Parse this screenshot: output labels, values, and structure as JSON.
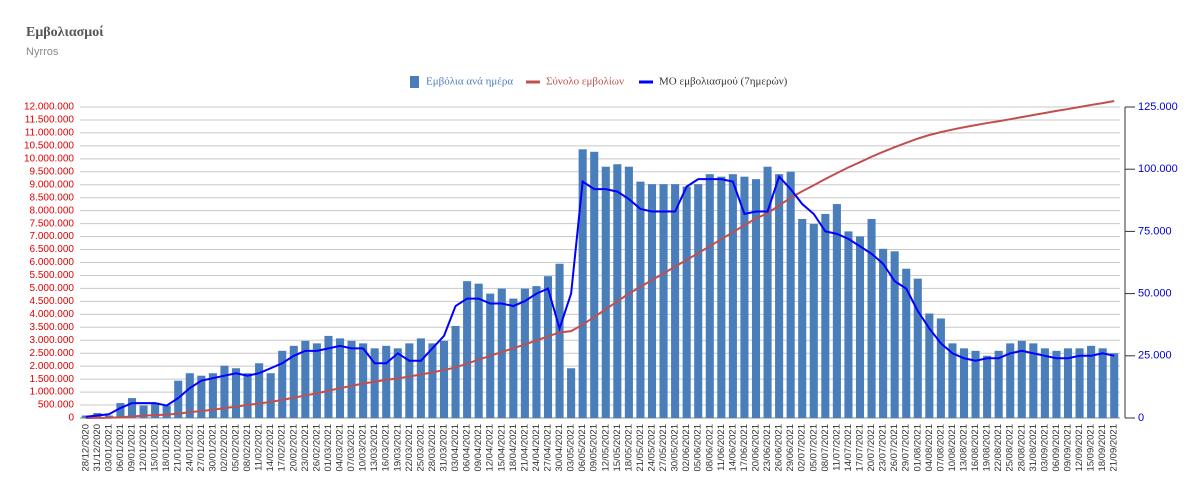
{
  "chart_data": {
    "type": "bar",
    "title": "Εμβολιασμοί",
    "subtitle": "Nyrros",
    "categories": [
      "28/12/2020",
      "31/12/2020",
      "03/01/2021",
      "06/01/2021",
      "09/01/2021",
      "12/01/2021",
      "15/01/2021",
      "18/01/2021",
      "21/01/2021",
      "24/01/2021",
      "27/01/2021",
      "30/01/2021",
      "02/02/2021",
      "05/02/2021",
      "08/02/2021",
      "11/02/2021",
      "14/02/2021",
      "17/02/2021",
      "20/02/2021",
      "23/02/2021",
      "26/02/2021",
      "01/03/2021",
      "04/03/2021",
      "07/03/2021",
      "10/03/2021",
      "13/03/2021",
      "16/03/2021",
      "19/03/2021",
      "22/03/2021",
      "25/03/2021",
      "28/03/2021",
      "31/03/2021",
      "03/04/2021",
      "06/04/2021",
      "09/04/2021",
      "12/04/2021",
      "15/04/2021",
      "18/04/2021",
      "21/04/2021",
      "24/04/2021",
      "27/04/2021",
      "30/04/2021",
      "03/05/2021",
      "06/05/2021",
      "09/05/2021",
      "12/05/2021",
      "15/05/2021",
      "18/05/2021",
      "21/05/2021",
      "24/05/2021",
      "27/05/2021",
      "30/05/2021",
      "02/06/2021",
      "05/06/2021",
      "08/06/2021",
      "11/06/2021",
      "14/06/2021",
      "17/06/2021",
      "20/06/2021",
      "23/06/2021",
      "26/06/2021",
      "29/06/2021",
      "02/07/2021",
      "05/07/2021",
      "08/07/2021",
      "11/07/2021",
      "14/07/2021",
      "17/07/2021",
      "20/07/2021",
      "23/07/2021",
      "26/07/2021",
      "29/07/2021",
      "01/08/2021",
      "04/08/2021",
      "07/08/2021",
      "10/08/2021",
      "13/08/2021",
      "16/08/2021",
      "19/08/2021",
      "22/08/2021",
      "25/08/2021",
      "28/08/2021",
      "31/08/2021",
      "03/09/2021",
      "06/09/2021",
      "09/09/2021",
      "12/09/2021",
      "15/09/2021",
      "18/09/2021",
      "21/09/2021"
    ],
    "series": [
      {
        "name": "Εμβόλια ανά ημέρα",
        "type": "bar",
        "axis": "y2",
        "color": "#4a7ebb",
        "values": [
          1000,
          2000,
          1000,
          6000,
          8000,
          5000,
          6000,
          5000,
          15000,
          18000,
          17000,
          18000,
          21000,
          20000,
          18000,
          22000,
          18000,
          27000,
          29000,
          31000,
          30000,
          33000,
          32000,
          31000,
          30000,
          28000,
          29000,
          28000,
          30000,
          32000,
          30000,
          31000,
          37000,
          55000,
          54000,
          50000,
          52000,
          48000,
          52000,
          53000,
          57000,
          62000,
          20000,
          108000,
          107000,
          101000,
          102000,
          101000,
          95000,
          94000,
          94000,
          94000,
          93000,
          94000,
          98000,
          97000,
          98000,
          97000,
          96000,
          101000,
          98000,
          99000,
          80000,
          78000,
          82000,
          86000,
          75000,
          73000,
          80000,
          68000,
          67000,
          60000,
          56000,
          42000,
          40000,
          30000,
          28000,
          27000,
          25000,
          27000,
          30000,
          31000,
          30000,
          28000,
          27000,
          28000,
          28000,
          29000,
          28000,
          26000
        ]
      },
      {
        "name": "Σύνολο εμβολίων",
        "type": "line",
        "color": "#c0504d",
        "values": [
          0,
          5000,
          10000,
          30000,
          60000,
          90000,
          110000,
          130000,
          170000,
          220000,
          270000,
          320000,
          380000,
          440000,
          500000,
          560000,
          620000,
          700000,
          780000,
          870000,
          950000,
          1050000,
          1150000,
          1240000,
          1330000,
          1400000,
          1470000,
          1530000,
          1600000,
          1680000,
          1760000,
          1850000,
          1950000,
          2100000,
          2250000,
          2400000,
          2550000,
          2690000,
          2840000,
          2990000,
          3150000,
          3300000,
          3350000,
          3600000,
          3900000,
          4200000,
          4500000,
          4800000,
          5060000,
          5320000,
          5580000,
          5840000,
          6100000,
          6360000,
          6630000,
          6900000,
          7170000,
          7440000,
          7700000,
          7900000,
          8200000,
          8500000,
          8750000,
          8980000,
          9220000,
          9450000,
          9670000,
          9870000,
          10080000,
          10270000,
          10450000,
          10620000,
          10780000,
          10920000,
          11030000,
          11130000,
          11220000,
          11300000,
          11380000,
          11450000,
          11530000,
          11610000,
          11690000,
          11770000,
          11850000,
          11920000,
          12000000,
          12080000,
          12150000,
          12230000
        ]
      },
      {
        "name": "ΜΟ εμβολιασμού (7ημερών)",
        "type": "line",
        "axis": "y2",
        "color": "#0000ff",
        "values": [
          500,
          1000,
          1500,
          4000,
          6000,
          6000,
          6000,
          5000,
          8000,
          12000,
          15000,
          16000,
          17000,
          18000,
          17000,
          18000,
          20000,
          22000,
          25000,
          27000,
          27000,
          28000,
          29000,
          28000,
          28000,
          22000,
          22000,
          26000,
          23000,
          23000,
          28000,
          33000,
          45000,
          48000,
          48000,
          46000,
          46000,
          45000,
          47000,
          50000,
          52000,
          36000,
          50000,
          95000,
          92000,
          92000,
          91000,
          88000,
          84000,
          83000,
          83000,
          83000,
          93000,
          96000,
          96000,
          96000,
          95000,
          82000,
          83000,
          83000,
          97000,
          92000,
          86000,
          82000,
          75000,
          74000,
          72000,
          69000,
          66000,
          62000,
          55000,
          52000,
          43000,
          36000,
          30000,
          26000,
          24000,
          23000,
          24000,
          24000,
          26000,
          27000,
          26000,
          25000,
          24000,
          24000,
          25000,
          25000,
          26000,
          25000
        ]
      }
    ],
    "ylim": [
      0,
      12000000
    ],
    "yticks": [
      0,
      {
        "value": 500000,
        "label": "500.000"
      },
      {
        "value": 1000000,
        "label": "1.000.000"
      },
      {
        "value": 1500000,
        "label": "1.500.000"
      },
      {
        "value": 2000000,
        "label": "2.000.000"
      },
      {
        "value": 2500000,
        "label": "2.500.000"
      },
      {
        "value": 3000000,
        "label": "3.000.000"
      },
      {
        "value": 3500000,
        "label": "3.500.000"
      },
      {
        "value": 4000000,
        "label": "4.000.000"
      },
      {
        "value": 4500000,
        "label": "4.500.000"
      },
      {
        "value": 5000000,
        "label": "5.000.000"
      },
      {
        "value": 5500000,
        "label": "5.500.000"
      },
      {
        "value": 6000000,
        "label": "6.000.000"
      },
      {
        "value": 6500000,
        "label": "6.500.000"
      },
      {
        "value": 7000000,
        "label": "7.000.000"
      },
      {
        "value": 7500000,
        "label": "7.500.000"
      },
      {
        "value": 8000000,
        "label": "8.000.000"
      },
      {
        "value": 8500000,
        "label": "8.500.000"
      },
      {
        "value": 9000000,
        "label": "9.000.000"
      },
      {
        "value": 9500000,
        "label": "9.500.000"
      },
      {
        "value": 10000000,
        "label": "10.000.000"
      },
      {
        "value": 10500000,
        "label": "10.500.000"
      },
      {
        "value": 11000000,
        "label": "11.000.000"
      },
      {
        "value": 11500000,
        "label": "11.500.000"
      },
      {
        "value": 12000000,
        "label": "12.000.000"
      }
    ],
    "y2lim": [
      0,
      125000
    ],
    "y2ticks": [
      0,
      {
        "value": 25000,
        "label": "25.000"
      },
      {
        "value": 50000,
        "label": "50.000"
      },
      {
        "value": 75000,
        "label": "75.000"
      },
      {
        "value": 100000,
        "label": "100.000"
      },
      {
        "value": 125000,
        "label": "125.000"
      }
    ],
    "grid": true,
    "legend": "top"
  }
}
